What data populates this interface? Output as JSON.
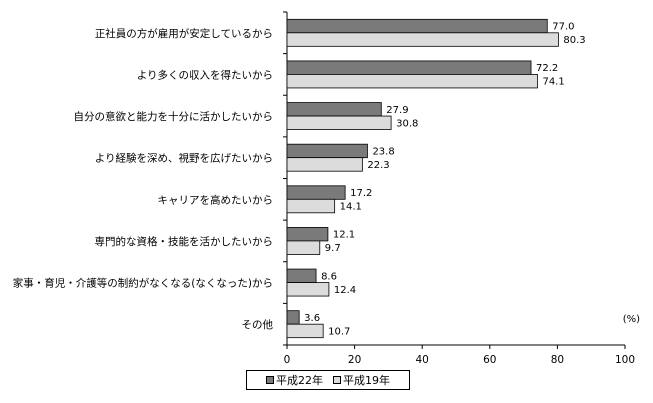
{
  "chart_data": {
    "type": "bar",
    "orientation": "horizontal",
    "categories": [
      "正社員の方が雇用が安定しているから",
      "より多くの収入を得たいから",
      "自分の意欲と能力を十分に活かしたいから",
      "より経験を深め、視野を広げたいから",
      "キャリアを高めたいから",
      "専門的な資格・技能を活かしたいから",
      "家事・育児・介護等の制約がなくなる(なくなった)から",
      "その他"
    ],
    "series": [
      {
        "name": "平成22年",
        "values": [
          77.0,
          72.2,
          27.9,
          23.8,
          17.2,
          12.1,
          8.6,
          3.6
        ],
        "labels": [
          "77.0",
          "72.2",
          "27.9",
          "23.8",
          "17.2",
          "12.1",
          "8.6",
          "3.6"
        ],
        "color": "#7a7a7a"
      },
      {
        "name": "平成19年",
        "values": [
          80.3,
          74.1,
          30.8,
          22.3,
          14.1,
          9.7,
          12.4,
          10.7
        ],
        "labels": [
          "80.3",
          "74.1",
          "30.8",
          "22.3",
          "14.1",
          "9.7",
          "12.4",
          "10.7"
        ],
        "color": "#dcdcdc"
      }
    ],
    "xlim": [
      0,
      100
    ],
    "xticks": [
      "0",
      "20",
      "40",
      "60",
      "80",
      "100"
    ],
    "unit": "(%)",
    "legend_position": "bottom",
    "grid": false
  }
}
